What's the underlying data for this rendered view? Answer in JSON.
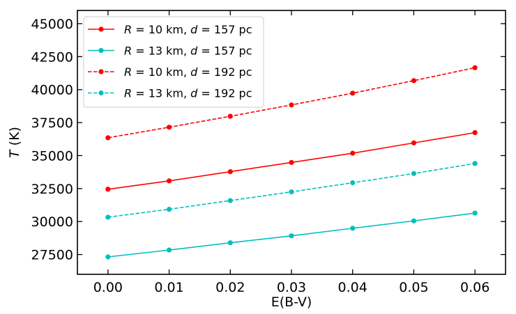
{
  "chart_data": {
    "type": "line",
    "title": "",
    "xlabel": "E(B-V)",
    "ylabel": "T (K)",
    "ylabel_italic": "T",
    "ylabel_unit": "(K)",
    "xlim": [
      -0.005,
      0.065
    ],
    "ylim": [
      26000,
      46000
    ],
    "xticks": [
      0.0,
      0.01,
      0.02,
      0.03,
      0.04,
      0.05,
      0.06
    ],
    "xtick_labels": [
      "0.00",
      "0.01",
      "0.02",
      "0.03",
      "0.04",
      "0.05",
      "0.06"
    ],
    "yticks": [
      27500,
      30000,
      32500,
      35000,
      37500,
      40000,
      42500,
      45000
    ],
    "ytick_labels": [
      "27500",
      "30000",
      "32500",
      "35000",
      "37500",
      "40000",
      "42500",
      "45000"
    ],
    "grid": false,
    "legend_position": "top-left",
    "x": [
      0.0,
      0.01,
      0.02,
      0.03,
      0.04,
      0.05,
      0.06
    ],
    "series": [
      {
        "name": "R = 10 km, d = 157 pc",
        "legend": {
          "R": "10",
          "d": "157"
        },
        "color": "#ff0000",
        "linestyle": "solid",
        "values": [
          32450,
          33080,
          33780,
          34480,
          35180,
          35960,
          36740
        ]
      },
      {
        "name": "R = 13 km, d = 157 pc",
        "legend": {
          "R": "13",
          "d": "157"
        },
        "color": "#00bfbf",
        "linestyle": "solid",
        "values": [
          27320,
          27840,
          28390,
          28920,
          29490,
          30050,
          30640
        ]
      },
      {
        "name": "R = 10 km, d = 192 pc",
        "legend": {
          "R": "10",
          "d": "192"
        },
        "color": "#ff0000",
        "linestyle": "dashed",
        "values": [
          36350,
          37150,
          37980,
          38840,
          39730,
          40680,
          41660
        ]
      },
      {
        "name": "R = 13 km, d = 192 pc",
        "legend": {
          "R": "13",
          "d": "192"
        },
        "color": "#00bfbf",
        "linestyle": "dashed",
        "values": [
          30330,
          30930,
          31590,
          32250,
          32940,
          33640,
          34400
        ]
      }
    ],
    "units": {
      "radius": "km",
      "distance": "pc"
    }
  }
}
